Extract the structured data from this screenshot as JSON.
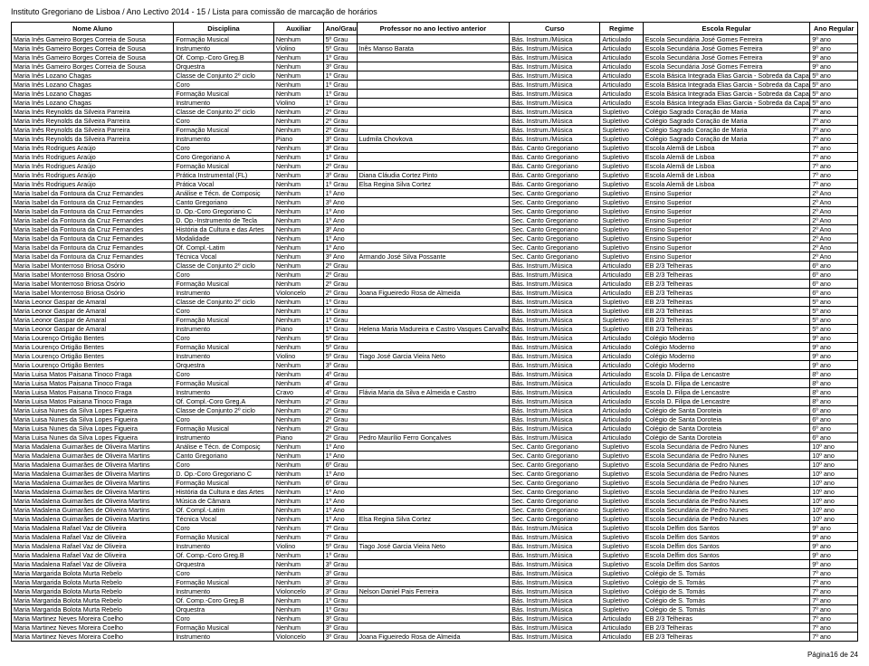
{
  "header": "Instituto Gregoriano de Lisboa / Ano Lectivo 2014 - 15 / Lista para comissão de marcação de horários",
  "footer": "Página16 de 24",
  "columns": [
    "Nome Aluno",
    "Disciplina",
    "Auxiliar",
    "Ano/Grau",
    "Professor no ano lectivo anterior",
    "Curso",
    "Regime",
    "Escola Regular",
    "Ano Regular"
  ],
  "rows": [
    [
      "Maria Inês Gameiro Borges Correia de Sousa",
      "Formação Musical",
      "Nenhum",
      "5º Grau",
      "",
      "Bás. Instrum./Música",
      "Articulado",
      "Escola Secundária José Gomes Ferreira",
      "9º ano"
    ],
    [
      "Maria Inês Gameiro Borges Correia de Sousa",
      "Instrumento",
      "Violino",
      "5º Grau",
      "Inês Manso Barata",
      "Bás. Instrum./Música",
      "Articulado",
      "Escola Secundária José Gomes Ferreira",
      "9º ano"
    ],
    [
      "Maria Inês Gameiro Borges Correia de Sousa",
      "Of. Comp.-Coro Greg.B",
      "Nenhum",
      "1º Grau",
      "",
      "Bás. Instrum./Música",
      "Articulado",
      "Escola Secundária José Gomes Ferreira",
      "9º ano"
    ],
    [
      "Maria Inês Gameiro Borges Correia de Sousa",
      "Orquestra",
      "Nenhum",
      "3º Grau",
      "",
      "Bás. Instrum./Música",
      "Articulado",
      "Escola Secundária José Gomes Ferreira",
      "9º ano"
    ],
    [
      "Maria Inês Lozano Chagas",
      "Classe de Conjunto 2º ciclo",
      "Nenhum",
      "1º Grau",
      "",
      "Bás. Instrum./Música",
      "Articulado",
      "Escola Básica Integrada Elias Garcia - Sobreda da Caparica",
      "5º ano"
    ],
    [
      "Maria Inês Lozano Chagas",
      "Coro",
      "Nenhum",
      "1º Grau",
      "",
      "Bás. Instrum./Música",
      "Articulado",
      "Escola Básica Integrada Elias Garcia - Sobreda da Caparica",
      "5º ano"
    ],
    [
      "Maria Inês Lozano Chagas",
      "Formação Musical",
      "Nenhum",
      "1º Grau",
      "",
      "Bás. Instrum./Música",
      "Articulado",
      "Escola Básica Integrada Elias Garcia - Sobreda da Caparica",
      "5º ano"
    ],
    [
      "Maria Inês Lozano Chagas",
      "Instrumento",
      "Violino",
      "1º Grau",
      "",
      "Bás. Instrum./Música",
      "Articulado",
      "Escola Básica Integrada Elias Garcia - Sobreda da Caparica",
      "5º ano"
    ],
    [
      "Maria Inês Reynolds da Silveira Parreira",
      "Classe de Conjunto 2º ciclo",
      "Nenhum",
      "2º Grau",
      "",
      "Bás. Instrum./Música",
      "Supletivo",
      "Colégio Sagrado Coração de Maria",
      "7º ano"
    ],
    [
      "Maria Inês Reynolds da Silveira Parreira",
      "Coro",
      "Nenhum",
      "2º Grau",
      "",
      "Bás. Instrum./Música",
      "Supletivo",
      "Colégio Sagrado Coração de Maria",
      "7º ano"
    ],
    [
      "Maria Inês Reynolds da Silveira Parreira",
      "Formação Musical",
      "Nenhum",
      "2º Grau",
      "",
      "Bás. Instrum./Música",
      "Supletivo",
      "Colégio Sagrado Coração de Maria",
      "7º ano"
    ],
    [
      "Maria Inês Reynolds da Silveira Parreira",
      "Instrumento",
      "Piano",
      "3º Grau",
      "Ludmila Chovkova",
      "Bás. Instrum./Música",
      "Supletivo",
      "Colégio Sagrado Coração de Maria",
      "7º ano"
    ],
    [
      "Maria Inês Rodrigues Araújo",
      "Coro",
      "Nenhum",
      "3º Grau",
      "",
      "Bás. Canto Gregoriano",
      "Supletivo",
      "Escola Alemã de Lisboa",
      "7º ano"
    ],
    [
      "Maria Inês Rodrigues Araújo",
      "Coro Gregoriano A",
      "Nenhum",
      "1º Grau",
      "",
      "Bás. Canto Gregoriano",
      "Supletivo",
      "Escola Alemã de Lisboa",
      "7º ano"
    ],
    [
      "Maria Inês Rodrigues Araújo",
      "Formação Musical",
      "Nenhum",
      "2º Grau",
      "",
      "Bás. Canto Gregoriano",
      "Supletivo",
      "Escola Alemã de Lisboa",
      "7º ano"
    ],
    [
      "Maria Inês Rodrigues Araújo",
      "Prática Instrumental (FL)",
      "Nenhum",
      "3º Grau",
      "Diana Cláudia Cortez Pinto",
      "Bás. Canto Gregoriano",
      "Supletivo",
      "Escola Alemã de Lisboa",
      "7º ano"
    ],
    [
      "Maria Inês Rodrigues Araújo",
      "Prática Vocal",
      "Nenhum",
      "1º Grau",
      "Elsa Regina Silva Cortez",
      "Bás. Canto Gregoriano",
      "Supletivo",
      "Escola Alemã de Lisboa",
      "7º ano"
    ],
    [
      "Maria Isabel da Fontoura da Cruz Fernandes",
      "Análise e Técn. de Composiç",
      "Nenhum",
      "1º Ano",
      "",
      "Sec. Canto Gregoriano",
      "Supletivo",
      "Ensino Superior",
      "2º Ano"
    ],
    [
      "Maria Isabel da Fontoura da Cruz Fernandes",
      "Canto Gregoriano",
      "Nenhum",
      "3º Ano",
      "",
      "Sec. Canto Gregoriano",
      "Supletivo",
      "Ensino Superior",
      "2º Ano"
    ],
    [
      "Maria Isabel da Fontoura da Cruz Fernandes",
      "D. Op.-Coro Gregoriano C",
      "Nenhum",
      "1º Ano",
      "",
      "Sec. Canto Gregoriano",
      "Supletivo",
      "Ensino Superior",
      "2º Ano"
    ],
    [
      "Maria Isabel da Fontoura da Cruz Fernandes",
      "D. Op.-Instrumento de Tecla",
      "Nenhum",
      "1º Ano",
      "",
      "Sec. Canto Gregoriano",
      "Supletivo",
      "Ensino Superior",
      "2º Ano"
    ],
    [
      "Maria Isabel da Fontoura da Cruz Fernandes",
      "História da Cultura e das Artes",
      "Nenhum",
      "3º Ano",
      "",
      "Sec. Canto Gregoriano",
      "Supletivo",
      "Ensino Superior",
      "2º Ano"
    ],
    [
      "Maria Isabel da Fontoura da Cruz Fernandes",
      "Modalidade",
      "Nenhum",
      "1º Ano",
      "",
      "Sec. Canto Gregoriano",
      "Supletivo",
      "Ensino Superior",
      "2º Ano"
    ],
    [
      "Maria Isabel da Fontoura da Cruz Fernandes",
      "Of. Compl.-Latim",
      "Nenhum",
      "1º Ano",
      "",
      "Sec. Canto Gregoriano",
      "Supletivo",
      "Ensino Superior",
      "2º Ano"
    ],
    [
      "Maria Isabel da Fontoura da Cruz Fernandes",
      "Técnica Vocal",
      "Nenhum",
      "3º Ano",
      "Armando José Silva Possante",
      "Sec. Canto Gregoriano",
      "Supletivo",
      "Ensino Superior",
      "2º Ano"
    ],
    [
      "Maria Isabel Monterroso Briosa Osório",
      "Classe de Conjunto 2º ciclo",
      "Nenhum",
      "2º Grau",
      "",
      "Bás. Instrum./Música",
      "Articulado",
      "EB 2/3 Telheiras",
      "6º ano"
    ],
    [
      "Maria Isabel Monterroso Briosa Osório",
      "Coro",
      "Nenhum",
      "2º Grau",
      "",
      "Bás. Instrum./Música",
      "Articulado",
      "EB 2/3 Telheiras",
      "6º ano"
    ],
    [
      "Maria Isabel Monterroso Briosa Osório",
      "Formação Musical",
      "Nenhum",
      "2º Grau",
      "",
      "Bás. Instrum./Música",
      "Articulado",
      "EB 2/3 Telheiras",
      "6º ano"
    ],
    [
      "Maria Isabel Monterroso Briosa Osório",
      "Instrumento",
      "Violoncelo",
      "2º Grau",
      "Joana Figueiredo Rosa de Almeida",
      "Bás. Instrum./Música",
      "Articulado",
      "EB 2/3 Telheiras",
      "6º ano"
    ],
    [
      "Maria Leonor Gaspar de Amaral",
      "Classe de Conjunto 2º ciclo",
      "Nenhum",
      "1º Grau",
      "",
      "Bás. Instrum./Música",
      "Supletivo",
      "EB 2/3 Telheiras",
      "5º ano"
    ],
    [
      "Maria Leonor Gaspar de Amaral",
      "Coro",
      "Nenhum",
      "1º Grau",
      "",
      "Bás. Instrum./Música",
      "Supletivo",
      "EB 2/3 Telheiras",
      "5º ano"
    ],
    [
      "Maria Leonor Gaspar de Amaral",
      "Formação Musical",
      "Nenhum",
      "1º Grau",
      "",
      "Bás. Instrum./Música",
      "Supletivo",
      "EB 2/3 Telheiras",
      "5º ano"
    ],
    [
      "Maria Leonor Gaspar de Amaral",
      "Instrumento",
      "Piano",
      "1º Grau",
      "Helena Maria Madureira e Castro Vasques Carvalho",
      "Bás. Instrum./Música",
      "Supletivo",
      "EB 2/3 Telheiras",
      "5º ano"
    ],
    [
      "Maria Lourenço Ortigão Bentes",
      "Coro",
      "Nenhum",
      "5º Grau",
      "",
      "Bás. Instrum./Música",
      "Articulado",
      "Colégio Moderno",
      "9º ano"
    ],
    [
      "Maria Lourenço Ortigão Bentes",
      "Formação Musical",
      "Nenhum",
      "5º Grau",
      "",
      "Bás. Instrum./Música",
      "Articulado",
      "Colégio Moderno",
      "9º ano"
    ],
    [
      "Maria Lourenço Ortigão Bentes",
      "Instrumento",
      "Violino",
      "5º Grau",
      "Tiago José Garcia Vieira Neto",
      "Bás. Instrum./Música",
      "Articulado",
      "Colégio Moderno",
      "9º ano"
    ],
    [
      "Maria Lourenço Ortigão Bentes",
      "Orquestra",
      "Nenhum",
      "3º Grau",
      "",
      "Bás. Instrum./Música",
      "Articulado",
      "Colégio Moderno",
      "9º ano"
    ],
    [
      "Maria Luisa Matos Paisana Tinoco Fraga",
      "Coro",
      "Nenhum",
      "4º Grau",
      "",
      "Bás. Instrum./Música",
      "Articulado",
      "Escola D. Filipa de Lencastre",
      "8º ano"
    ],
    [
      "Maria Luisa Matos Paisana Tinoco Fraga",
      "Formação Musical",
      "Nenhum",
      "4º Grau",
      "",
      "Bás. Instrum./Música",
      "Articulado",
      "Escola D. Filipa de Lencastre",
      "8º ano"
    ],
    [
      "Maria Luisa Matos Paisana Tinoco Fraga",
      "Instrumento",
      "Cravo",
      "4º Grau",
      "Flávia Maria da Silva e Almeida e Castro",
      "Bás. Instrum./Música",
      "Articulado",
      "Escola D. Filipa de Lencastre",
      "8º ano"
    ],
    [
      "Maria Luisa Matos Paisana Tinoco Fraga",
      "Of. Compl.-Coro Greg.A",
      "Nenhum",
      "2º Grau",
      "",
      "Bás. Instrum./Música",
      "Articulado",
      "Escola D. Filipa de Lencastre",
      "8º ano"
    ],
    [
      "Maria Luisa Nunes da Silva Lopes Figueira",
      "Classe de Conjunto 2º ciclo",
      "Nenhum",
      "2º Grau",
      "",
      "Bás. Instrum./Música",
      "Articulado",
      "Colégio de Santa Doroteia",
      "6º ano"
    ],
    [
      "Maria Luisa Nunes da Silva Lopes Figueira",
      "Coro",
      "Nenhum",
      "2º Grau",
      "",
      "Bás. Instrum./Música",
      "Articulado",
      "Colégio de Santa Doroteia",
      "6º ano"
    ],
    [
      "Maria Luisa Nunes da Silva Lopes Figueira",
      "Formação Musical",
      "Nenhum",
      "2º Grau",
      "",
      "Bás. Instrum./Música",
      "Articulado",
      "Colégio de Santa Doroteia",
      "6º ano"
    ],
    [
      "Maria Luisa Nunes da Silva Lopes Figueira",
      "Instrumento",
      "Piano",
      "2º Grau",
      "Pedro Maurílio Ferro Gonçalves",
      "Bás. Instrum./Música",
      "Articulado",
      "Colégio de Santa Doroteia",
      "6º ano"
    ],
    [
      "Maria Madalena Guimarães de Oliveira Martins",
      "Análise e Técn. de Composiç",
      "Nenhum",
      "1º Ano",
      "",
      "Sec. Canto Gregoriano",
      "Supletivo",
      "Escola Secundária de Pedro Nunes",
      "10º ano"
    ],
    [
      "Maria Madalena Guimarães de Oliveira Martins",
      "Canto Gregoriano",
      "Nenhum",
      "1º Ano",
      "",
      "Sec. Canto Gregoriano",
      "Supletivo",
      "Escola Secundária de Pedro Nunes",
      "10º ano"
    ],
    [
      "Maria Madalena Guimarães de Oliveira Martins",
      "Coro",
      "Nenhum",
      "6º Grau",
      "",
      "Sec. Canto Gregoriano",
      "Supletivo",
      "Escola Secundária de Pedro Nunes",
      "10º ano"
    ],
    [
      "Maria Madalena Guimarães de Oliveira Martins",
      "D. Op.-Coro Gregoriano C",
      "Nenhum",
      "1º Ano",
      "",
      "Sec. Canto Gregoriano",
      "Supletivo",
      "Escola Secundária de Pedro Nunes",
      "10º ano"
    ],
    [
      "Maria Madalena Guimarães de Oliveira Martins",
      "Formação Musical",
      "Nenhum",
      "6º Grau",
      "",
      "Sec. Canto Gregoriano",
      "Supletivo",
      "Escola Secundária de Pedro Nunes",
      "10º ano"
    ],
    [
      "Maria Madalena Guimarães de Oliveira Martins",
      "História da Cultura e das Artes",
      "Nenhum",
      "1º Ano",
      "",
      "Sec. Canto Gregoriano",
      "Supletivo",
      "Escola Secundária de Pedro Nunes",
      "10º ano"
    ],
    [
      "Maria Madalena Guimarães de Oliveira Martins",
      "Música de Câmara",
      "Nenhum",
      "1º Ano",
      "",
      "Sec. Canto Gregoriano",
      "Supletivo",
      "Escola Secundária de Pedro Nunes",
      "10º ano"
    ],
    [
      "Maria Madalena Guimarães de Oliveira Martins",
      "Of. Compl.-Latim",
      "Nenhum",
      "1º Ano",
      "",
      "Sec. Canto Gregoriano",
      "Supletivo",
      "Escola Secundária de Pedro Nunes",
      "10º ano"
    ],
    [
      "Maria Madalena Guimarães de Oliveira Martins",
      "Técnica Vocal",
      "Nenhum",
      "1º Ano",
      "Elsa Regina Silva Cortez",
      "Sec. Canto Gregoriano",
      "Supletivo",
      "Escola Secundária de Pedro Nunes",
      "10º ano"
    ],
    [
      "Maria Madalena Rafael Vaz de Oliveira",
      "Coro",
      "Nenhum",
      "7º Grau",
      "",
      "Bás. Instrum./Música",
      "Supletivo",
      "Escola Delfim dos Santos",
      "9º ano"
    ],
    [
      "Maria Madalena Rafael Vaz de Oliveira",
      "Formação Musical",
      "Nenhum",
      "7º Grau",
      "",
      "Bás. Instrum./Música",
      "Supletivo",
      "Escola Delfim dos Santos",
      "9º ano"
    ],
    [
      "Maria Madalena Rafael Vaz de Oliveira",
      "Instrumento",
      "Violino",
      "5º Grau",
      "Tiago José Garcia Vieira Neto",
      "Bás. Instrum./Música",
      "Supletivo",
      "Escola Delfim dos Santos",
      "9º ano"
    ],
    [
      "Maria Madalena Rafael Vaz de Oliveira",
      "Of. Comp.-Coro Greg.B",
      "Nenhum",
      "1º Grau",
      "",
      "Bás. Instrum./Música",
      "Supletivo",
      "Escola Delfim dos Santos",
      "9º ano"
    ],
    [
      "Maria Madalena Rafael Vaz de Oliveira",
      "Orquestra",
      "Nenhum",
      "3º Grau",
      "",
      "Bás. Instrum./Música",
      "Supletivo",
      "Escola Delfim dos Santos",
      "9º ano"
    ],
    [
      "Maria Margarida Bolota Murta Rebelo",
      "Coro",
      "Nenhum",
      "3º Grau",
      "",
      "Bás. Instrum./Música",
      "Supletivo",
      "Colégio de S. Tomás",
      "7º ano"
    ],
    [
      "Maria Margarida Bolota Murta Rebelo",
      "Formação Musical",
      "Nenhum",
      "3º Grau",
      "",
      "Bás. Instrum./Música",
      "Supletivo",
      "Colégio de S. Tomás",
      "7º ano"
    ],
    [
      "Maria Margarida Bolota Murta Rebelo",
      "Instrumento",
      "Violoncelo",
      "3º Grau",
      "Nelson Daniel Pais Ferreira",
      "Bás. Instrum./Música",
      "Supletivo",
      "Colégio de S. Tomás",
      "7º ano"
    ],
    [
      "Maria Margarida Bolota Murta Rebelo",
      "Of. Comp.-Coro Greg.B",
      "Nenhum",
      "1º Grau",
      "",
      "Bás. Instrum./Música",
      "Supletivo",
      "Colégio de S. Tomás",
      "7º ano"
    ],
    [
      "Maria Margarida Bolota Murta Rebelo",
      "Orquestra",
      "Nenhum",
      "1º Grau",
      "",
      "Bás. Instrum./Música",
      "Supletivo",
      "Colégio de S. Tomás",
      "7º ano"
    ],
    [
      "Maria Martinez Neves Moreira Coelho",
      "Coro",
      "Nenhum",
      "3º Grau",
      "",
      "Bás. Instrum./Música",
      "Articulado",
      "EB 2/3 Telheiras",
      "7º ano"
    ],
    [
      "Maria Martinez Neves Moreira Coelho",
      "Formação Musical",
      "Nenhum",
      "3º Grau",
      "",
      "Bás. Instrum./Música",
      "Articulado",
      "EB 2/3 Telheiras",
      "7º ano"
    ],
    [
      "Maria Martinez Neves Moreira Coelho",
      "Instrumento",
      "Violoncelo",
      "3º Grau",
      "Joana Figueiredo Rosa de Almeida",
      "Bás. Instrum./Música",
      "Articulado",
      "EB 2/3 Telheiras",
      "7º ano"
    ]
  ]
}
